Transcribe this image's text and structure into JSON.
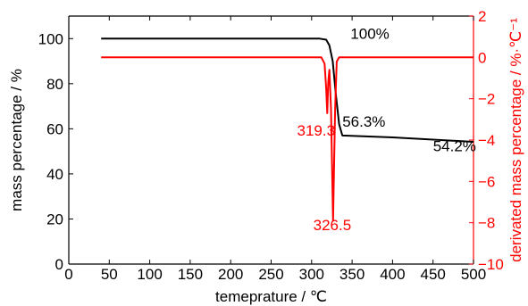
{
  "chart_data": {
    "type": "line",
    "xlabel": "temeprature / ℃",
    "ylabel": "mass percentage / %",
    "y2label": "derivated mass percentage / %·℃⁻¹",
    "xlim": [
      0,
      500
    ],
    "ylim": [
      0,
      110
    ],
    "y2lim": [
      -10,
      2
    ],
    "xticks": [
      0,
      50,
      100,
      150,
      200,
      250,
      300,
      350,
      400,
      450,
      500
    ],
    "yticks": [
      0,
      20,
      40,
      60,
      80,
      100
    ],
    "y2ticks": [
      -10,
      -8,
      -6,
      -4,
      -2,
      0,
      2
    ],
    "grid": false,
    "colors": {
      "primary": "#000000",
      "secondary": "#ff0000"
    },
    "series": [
      {
        "axis": "left",
        "color": "#000000",
        "x": [
          40,
          310,
          318,
          322,
          326,
          330,
          334,
          338,
          400,
          450,
          500
        ],
        "y": [
          100,
          100,
          99.5,
          97,
          90,
          75,
          62,
          57,
          56.2,
          55.2,
          54.2
        ]
      },
      {
        "axis": "right",
        "color": "#ff0000",
        "x": [
          40,
          312,
          316,
          318,
          319.3,
          320.5,
          322,
          324,
          326.5,
          329,
          331,
          334,
          500
        ],
        "y": [
          0,
          0,
          -0.3,
          -1.5,
          -2.7,
          -1.2,
          -0.6,
          -2.5,
          -7.9,
          -2.5,
          -0.2,
          0,
          0
        ]
      }
    ],
    "annotations": [
      {
        "text": "100%",
        "x": 348,
        "y": 100,
        "axis": "left",
        "color": "#000000"
      },
      {
        "text": "56.3%",
        "x": 338,
        "y": 61,
        "axis": "left",
        "color": "#000000"
      },
      {
        "text": "54.2%",
        "x": 450,
        "y": 50,
        "axis": "left",
        "color": "#000000"
      },
      {
        "text": "319.3",
        "x": 282,
        "y": 57,
        "axis": "left",
        "color": "#ff0000"
      },
      {
        "text": "326.5",
        "x": 302,
        "y": 15,
        "axis": "left",
        "color": "#ff0000"
      }
    ]
  }
}
